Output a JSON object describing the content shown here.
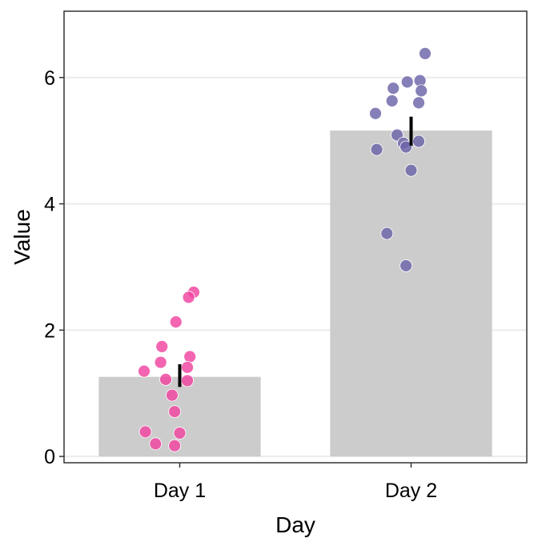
{
  "chart_data": {
    "type": "bar",
    "title": "",
    "xlabel": "Day",
    "ylabel": "Value",
    "ylim": [
      -0.1,
      7.05
    ],
    "yticks": [
      0,
      2,
      4,
      6
    ],
    "grid": "horizontal major lines",
    "legend": "none",
    "categories": [
      "Day 1",
      "Day 2"
    ],
    "values": [
      1.26,
      5.16
    ],
    "error_bars": [
      {
        "low": 1.1,
        "high": 1.46
      },
      {
        "low": 4.92,
        "high": 5.38
      }
    ],
    "points": [
      {
        "category": "Day 1",
        "values": [
          2.6,
          2.52,
          2.13,
          1.74,
          1.58,
          1.49,
          1.41,
          1.35,
          1.22,
          1.2,
          0.97,
          0.71,
          0.39,
          0.37,
          0.2,
          0.17
        ]
      },
      {
        "category": "Day 2",
        "values": [
          6.38,
          5.95,
          5.93,
          5.83,
          5.79,
          5.63,
          5.6,
          5.43,
          5.09,
          4.99,
          4.96,
          4.9,
          4.86,
          4.53,
          3.53,
          3.02
        ]
      }
    ],
    "colors": {
      "bar": "#cccccc",
      "points": [
        "#f0439f",
        "#6b64a8"
      ],
      "error_bar": "#000000",
      "grid": "#ebebeb"
    }
  }
}
